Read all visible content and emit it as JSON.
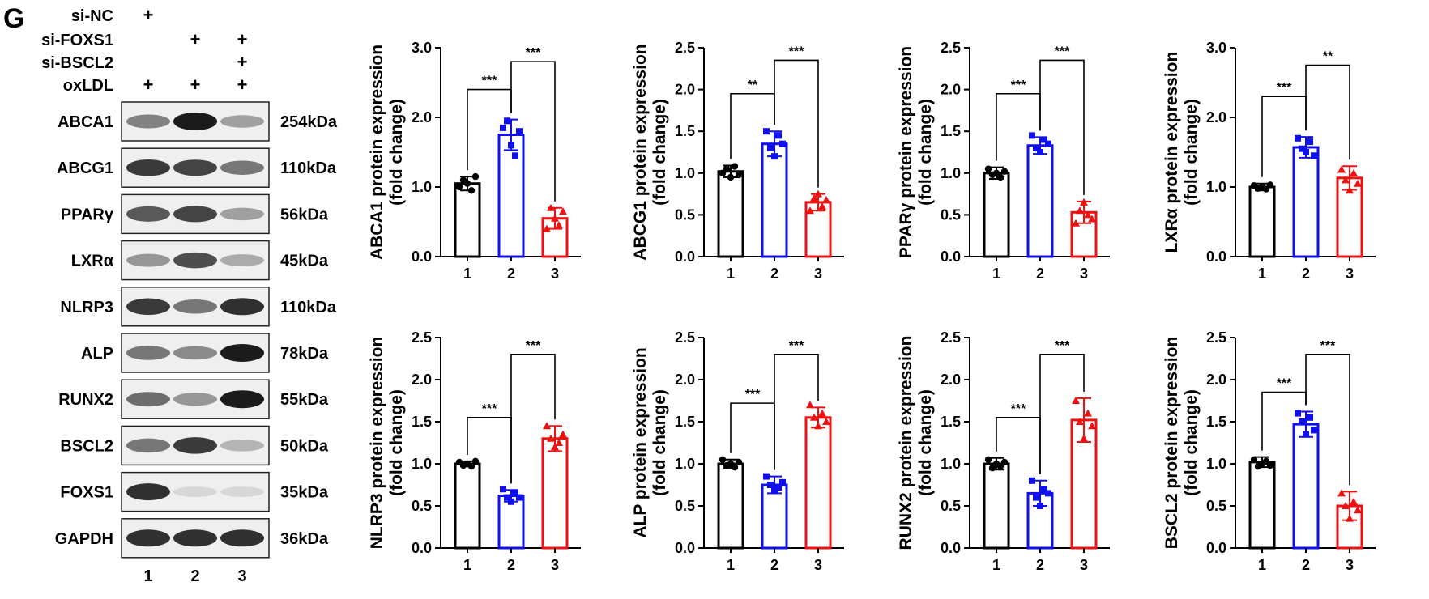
{
  "panel_label": "G",
  "western_blot": {
    "conditions": [
      {
        "name": "si-NC",
        "marks": [
          "+",
          "",
          ""
        ]
      },
      {
        "name": "si-FOXS1",
        "marks": [
          "",
          "+",
          "+"
        ]
      },
      {
        "name": "si-BSCL2",
        "marks": [
          "",
          "",
          "+"
        ]
      },
      {
        "name": "oxLDL",
        "marks": [
          "+",
          "+",
          "+"
        ]
      }
    ],
    "lanes": [
      "1",
      "2",
      "3"
    ],
    "bands": [
      {
        "protein": "ABCA1",
        "size": "254kDa",
        "intensity": [
          0.5,
          1.0,
          0.35
        ]
      },
      {
        "protein": "ABCG1",
        "size": "110kDa",
        "intensity": [
          0.85,
          0.8,
          0.55
        ]
      },
      {
        "protein": "PPARγ",
        "size": "56kDa",
        "intensity": [
          0.7,
          0.8,
          0.35
        ]
      },
      {
        "protein": "LXRα",
        "size": "45kDa",
        "intensity": [
          0.4,
          0.75,
          0.3
        ]
      },
      {
        "protein": "NLRP3",
        "size": "110kDa",
        "intensity": [
          0.85,
          0.55,
          0.9
        ]
      },
      {
        "protein": "ALP",
        "size": "78kDa",
        "intensity": [
          0.55,
          0.45,
          1.0
        ]
      },
      {
        "protein": "RUNX2",
        "size": "55kDa",
        "intensity": [
          0.6,
          0.4,
          1.0
        ]
      },
      {
        "protein": "BSCL2",
        "size": "50kDa",
        "intensity": [
          0.55,
          0.85,
          0.25
        ]
      },
      {
        "protein": "FOXS1",
        "size": "35kDa",
        "intensity": [
          0.9,
          0.08,
          0.08
        ]
      },
      {
        "protein": "GAPDH",
        "size": "36kDa",
        "intensity": [
          0.9,
          0.9,
          0.9
        ]
      }
    ]
  },
  "colors": {
    "group1": "#000000",
    "group2": "#1010ee",
    "group3": "#ee1111"
  },
  "chart_data": [
    {
      "type": "bar",
      "protein": "ABCA1",
      "ylabel_line1": "ABCA1  protein expression",
      "ylabel_line2": "(fold change)",
      "categories": [
        "1",
        "2",
        "3"
      ],
      "values": [
        1.05,
        1.75,
        0.55
      ],
      "errors": [
        0.1,
        0.22,
        0.15
      ],
      "points": [
        [
          1.0,
          1.1,
          1.05,
          0.95,
          1.15
        ],
        [
          1.85,
          1.95,
          1.6,
          1.45,
          1.8
        ],
        [
          0.4,
          0.7,
          0.55,
          0.45,
          0.65
        ]
      ],
      "ylim": [
        0,
        3.0
      ],
      "yticks": [
        "0.0",
        "1.0",
        "2.0",
        "3.0"
      ],
      "ytick_values": [
        0,
        1,
        2,
        3
      ],
      "sig": [
        {
          "from": 0,
          "to": 1,
          "label": "***",
          "y": 2.4
        },
        {
          "from": 1,
          "to": 2,
          "label": "***",
          "y": 2.8
        }
      ]
    },
    {
      "type": "bar",
      "protein": "ABCG1",
      "ylabel_line1": "ABCG1  protein expression",
      "ylabel_line2": "(fold change)",
      "categories": [
        "1",
        "2",
        "3"
      ],
      "values": [
        1.02,
        1.35,
        0.65
      ],
      "errors": [
        0.07,
        0.15,
        0.1
      ],
      "points": [
        [
          1.0,
          1.05,
          0.95,
          1.08,
          0.98
        ],
        [
          1.5,
          1.3,
          1.2,
          1.45,
          1.35
        ],
        [
          0.55,
          0.7,
          0.75,
          0.6,
          0.68
        ]
      ],
      "ylim": [
        0,
        2.5
      ],
      "yticks": [
        "0.0",
        "0.5",
        "1.0",
        "1.5",
        "2.0",
        "2.5"
      ],
      "ytick_values": [
        0,
        0.5,
        1,
        1.5,
        2,
        2.5
      ],
      "sig": [
        {
          "from": 0,
          "to": 1,
          "label": "**",
          "y": 1.95
        },
        {
          "from": 1,
          "to": 2,
          "label": "***",
          "y": 2.35
        }
      ]
    },
    {
      "type": "bar",
      "protein": "PPARγ",
      "ylabel_line1": "PPARγ  protein expression",
      "ylabel_line2": "(fold change)",
      "categories": [
        "1",
        "2",
        "3"
      ],
      "values": [
        1.0,
        1.33,
        0.53
      ],
      "errors": [
        0.07,
        0.1,
        0.13
      ],
      "points": [
        [
          1.05,
          0.98,
          1.0,
          0.95,
          1.02
        ],
        [
          1.45,
          1.3,
          1.25,
          1.4,
          1.35
        ],
        [
          0.4,
          0.55,
          0.65,
          0.5,
          0.45
        ]
      ],
      "ylim": [
        0,
        2.5
      ],
      "yticks": [
        "0.0",
        "0.5",
        "1.0",
        "1.5",
        "2.0",
        "2.5"
      ],
      "ytick_values": [
        0,
        0.5,
        1,
        1.5,
        2,
        2.5
      ],
      "sig": [
        {
          "from": 0,
          "to": 1,
          "label": "***",
          "y": 1.95
        },
        {
          "from": 1,
          "to": 2,
          "label": "***",
          "y": 2.35
        }
      ]
    },
    {
      "type": "bar",
      "protein": "LXRα",
      "ylabel_line1": "LXRα  protein expression",
      "ylabel_line2": "(fold change)",
      "categories": [
        "1",
        "2",
        "3"
      ],
      "values": [
        1.0,
        1.57,
        1.13
      ],
      "errors": [
        0.05,
        0.15,
        0.17
      ],
      "points": [
        [
          1.02,
          0.98,
          1.0,
          0.97,
          1.03
        ],
        [
          1.7,
          1.55,
          1.5,
          1.65,
          1.45
        ],
        [
          1.25,
          1.1,
          0.95,
          1.2,
          1.05
        ]
      ],
      "ylim": [
        0,
        3.0
      ],
      "yticks": [
        "0.0",
        "1.0",
        "2.0",
        "3.0"
      ],
      "ytick_values": [
        0,
        1,
        2,
        3
      ],
      "sig": [
        {
          "from": 0,
          "to": 1,
          "label": "***",
          "y": 2.3
        },
        {
          "from": 1,
          "to": 2,
          "label": "**",
          "y": 2.75
        }
      ]
    },
    {
      "type": "bar",
      "protein": "NLRP3",
      "ylabel_line1": "NLRP3  protein expression",
      "ylabel_line2": "(fold change)",
      "categories": [
        "1",
        "2",
        "3"
      ],
      "values": [
        1.0,
        0.62,
        1.3
      ],
      "errors": [
        0.03,
        0.07,
        0.15
      ],
      "points": [
        [
          1.02,
          0.98,
          1.0,
          0.97,
          1.03
        ],
        [
          0.7,
          0.6,
          0.55,
          0.65,
          0.6
        ],
        [
          1.45,
          1.3,
          1.2,
          1.25,
          1.35
        ]
      ],
      "ylim": [
        0,
        2.5
      ],
      "yticks": [
        "0.0",
        "0.5",
        "1.0",
        "1.5",
        "2.0",
        "2.5"
      ],
      "ytick_values": [
        0,
        0.5,
        1,
        1.5,
        2,
        2.5
      ],
      "sig": [
        {
          "from": 0,
          "to": 1,
          "label": "***",
          "y": 1.55
        },
        {
          "from": 1,
          "to": 2,
          "label": "***",
          "y": 2.3
        }
      ]
    },
    {
      "type": "bar",
      "protein": "ALP",
      "ylabel_line1": "ALP  protein expression",
      "ylabel_line2": "(fold change)",
      "categories": [
        "1",
        "2",
        "3"
      ],
      "values": [
        1.0,
        0.75,
        1.55
      ],
      "errors": [
        0.05,
        0.1,
        0.12
      ],
      "points": [
        [
          1.05,
          0.98,
          1.0,
          0.96,
          1.02
        ],
        [
          0.85,
          0.75,
          0.68,
          0.72,
          0.78
        ],
        [
          1.7,
          1.55,
          1.45,
          1.6,
          1.5
        ]
      ],
      "ylim": [
        0,
        2.5
      ],
      "yticks": [
        "0.0",
        "0.5",
        "1.0",
        "1.5",
        "2.0",
        "2.5"
      ],
      "ytick_values": [
        0,
        0.5,
        1,
        1.5,
        2,
        2.5
      ],
      "sig": [
        {
          "from": 0,
          "to": 1,
          "label": "***",
          "y": 1.72
        },
        {
          "from": 1,
          "to": 2,
          "label": "***",
          "y": 2.3
        }
      ]
    },
    {
      "type": "bar",
      "protein": "RUNX2",
      "ylabel_line1": "RUNX2  protein expression",
      "ylabel_line2": "(fold change)",
      "categories": [
        "1",
        "2",
        "3"
      ],
      "values": [
        1.0,
        0.65,
        1.52
      ],
      "errors": [
        0.07,
        0.15,
        0.26
      ],
      "points": [
        [
          1.05,
          0.95,
          1.0,
          0.97,
          1.02
        ],
        [
          0.8,
          0.6,
          0.5,
          0.7,
          0.65
        ],
        [
          1.75,
          1.5,
          1.3,
          1.6,
          1.45
        ]
      ],
      "ylim": [
        0,
        2.5
      ],
      "yticks": [
        "0.0",
        "0.5",
        "1.0",
        "1.5",
        "2.0",
        "2.5"
      ],
      "ytick_values": [
        0,
        0.5,
        1,
        1.5,
        2,
        2.5
      ],
      "sig": [
        {
          "from": 0,
          "to": 1,
          "label": "***",
          "y": 1.55
        },
        {
          "from": 1,
          "to": 2,
          "label": "***",
          "y": 2.3
        }
      ]
    },
    {
      "type": "bar",
      "protein": "BSCL2",
      "ylabel_line1": "BSCL2  protein expression",
      "ylabel_line2": "(fold change)",
      "categories": [
        "1",
        "2",
        "3"
      ],
      "values": [
        1.02,
        1.47,
        0.5
      ],
      "errors": [
        0.06,
        0.15,
        0.17
      ],
      "points": [
        [
          1.05,
          0.97,
          1.0,
          1.03,
          0.98
        ],
        [
          1.6,
          1.5,
          1.35,
          1.55,
          1.4
        ],
        [
          0.65,
          0.5,
          0.35,
          0.55,
          0.45
        ]
      ],
      "ylim": [
        0,
        2.5
      ],
      "yticks": [
        "0.0",
        "0.5",
        "1.0",
        "1.5",
        "2.0",
        "2.5"
      ],
      "ytick_values": [
        0,
        0.5,
        1,
        1.5,
        2,
        2.5
      ],
      "sig": [
        {
          "from": 0,
          "to": 1,
          "label": "***",
          "y": 1.85
        },
        {
          "from": 1,
          "to": 2,
          "label": "***",
          "y": 2.3
        }
      ]
    }
  ]
}
